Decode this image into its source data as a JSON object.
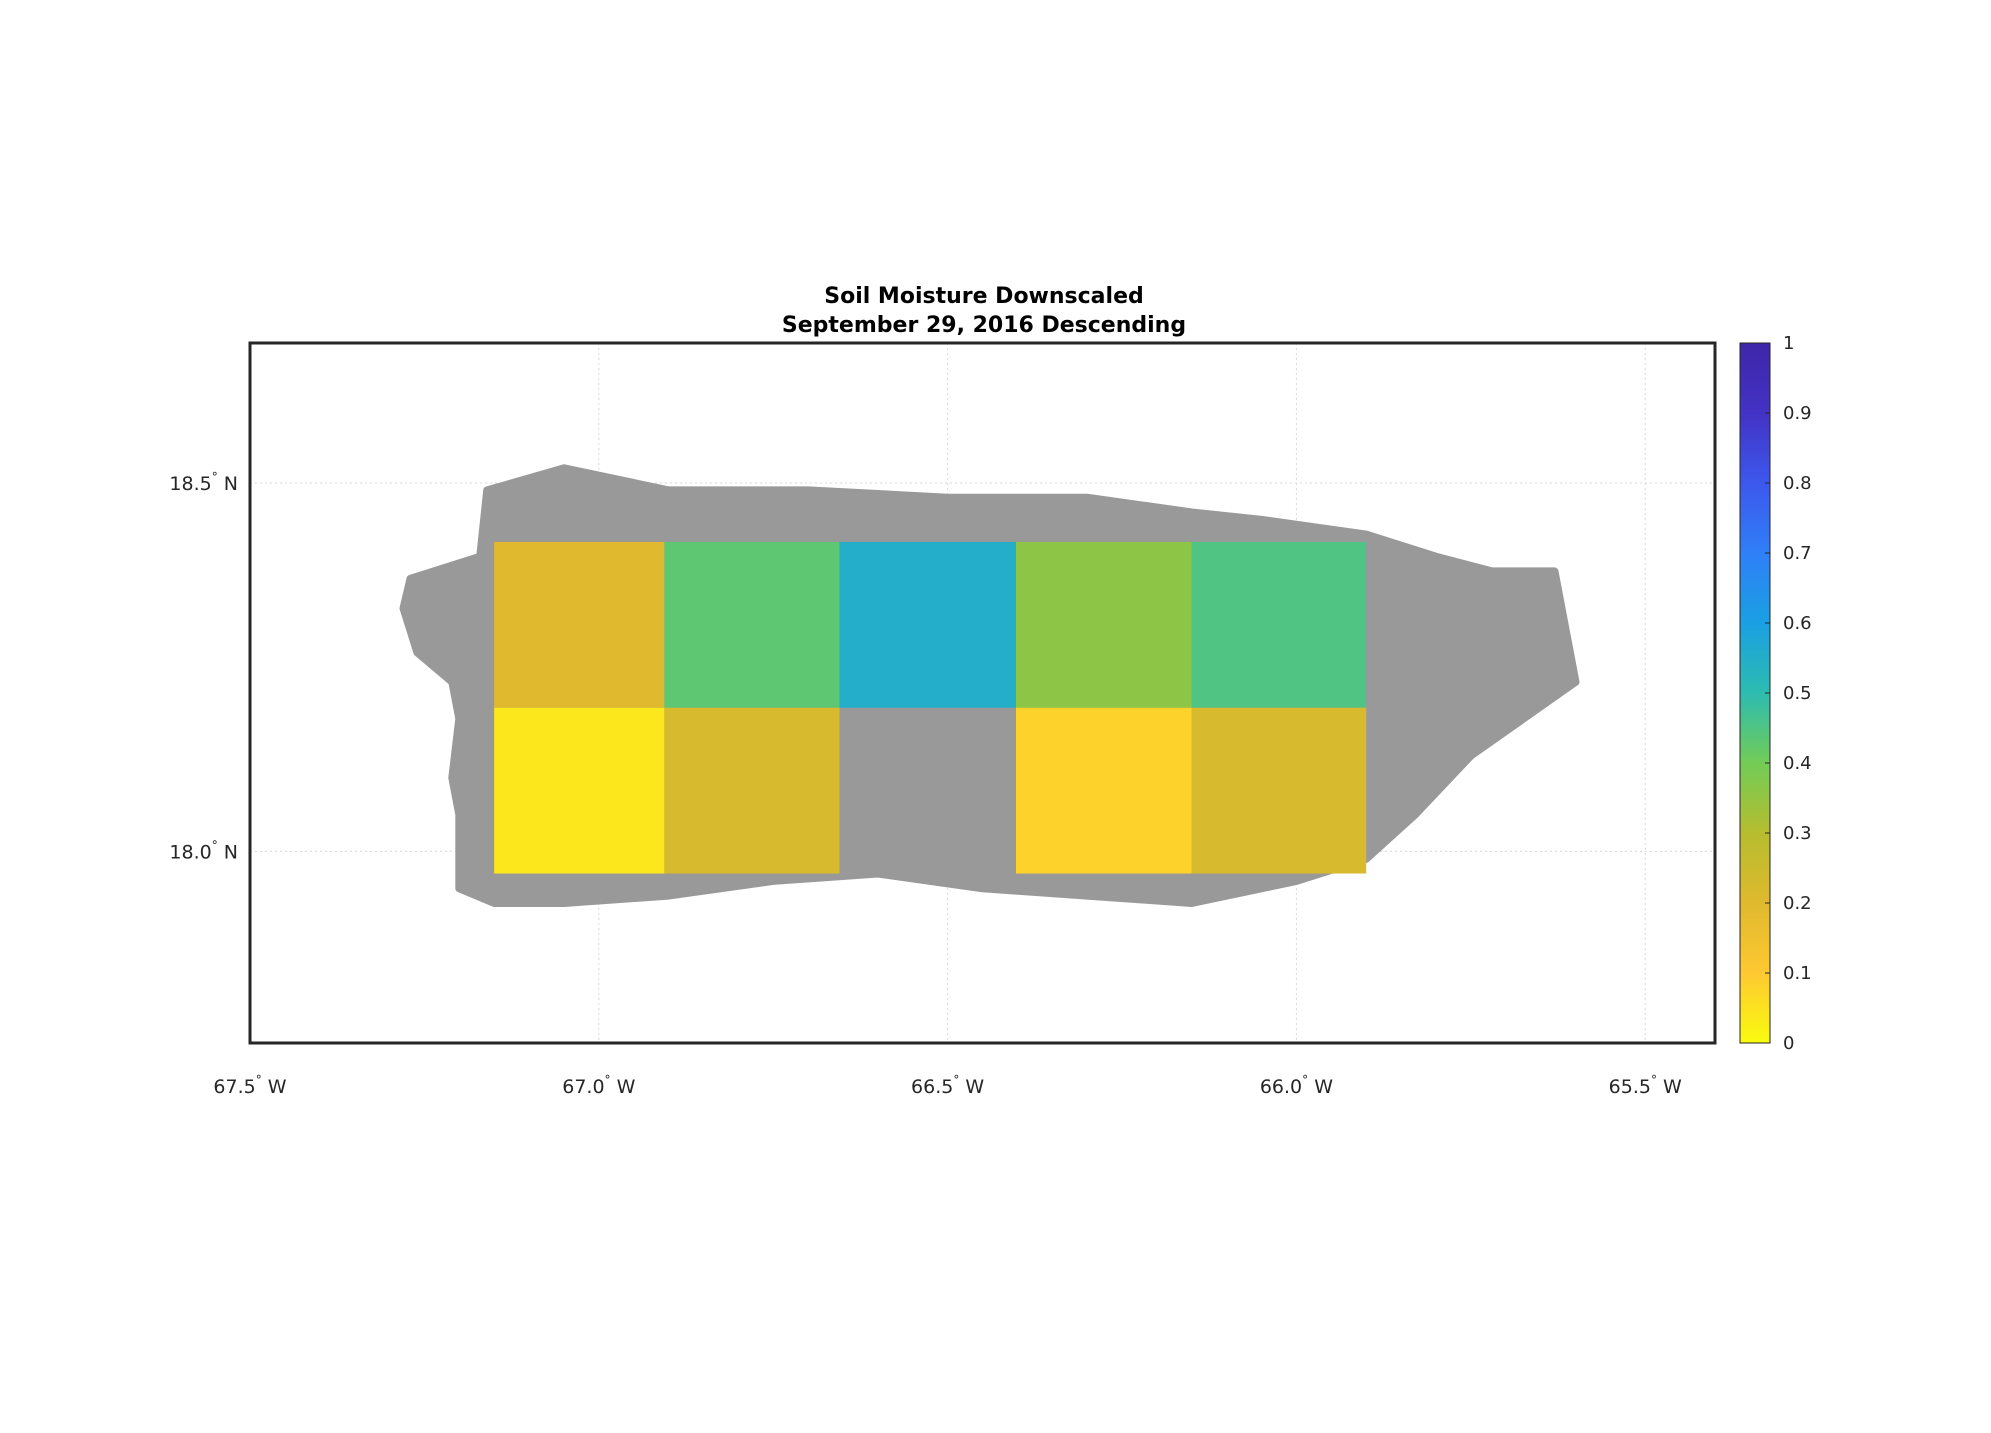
{
  "figure": {
    "title_line1": "Soil Moisture Downscaled",
    "title_line2": "September 29, 2016 Descending"
  },
  "map": {
    "lon_range": [
      -67.5,
      -65.4
    ],
    "lat_range": [
      17.74,
      18.69
    ],
    "xticks": [
      {
        "lon": -67.5,
        "num": "67.5",
        "hem": " W"
      },
      {
        "lon": -67.0,
        "num": "67.0",
        "hem": " W"
      },
      {
        "lon": -66.5,
        "num": "66.5",
        "hem": " W"
      },
      {
        "lon": -66.0,
        "num": "66.0",
        "hem": " W"
      },
      {
        "lon": -65.5,
        "num": "65.5",
        "hem": " W"
      }
    ],
    "yticks": [
      {
        "lat": 18.5,
        "num": "18.5",
        "hem": " N"
      },
      {
        "lat": 18.0,
        "num": "18.0",
        "hem": " N"
      }
    ],
    "grid": true,
    "no_data_color": "#999999",
    "land_outline": [
      [
        -67.27,
        18.37
      ],
      [
        -67.17,
        18.4
      ],
      [
        -67.16,
        18.49
      ],
      [
        -67.05,
        18.52
      ],
      [
        -66.9,
        18.49
      ],
      [
        -66.7,
        18.49
      ],
      [
        -66.5,
        18.48
      ],
      [
        -66.3,
        18.48
      ],
      [
        -66.15,
        18.46
      ],
      [
        -66.05,
        18.45
      ],
      [
        -65.9,
        18.43
      ],
      [
        -65.8,
        18.4
      ],
      [
        -65.72,
        18.38
      ],
      [
        -65.63,
        18.38
      ],
      [
        -65.6,
        18.23
      ],
      [
        -65.66,
        18.19
      ],
      [
        -65.75,
        18.13
      ],
      [
        -65.83,
        18.05
      ],
      [
        -65.9,
        17.99
      ],
      [
        -66.0,
        17.96
      ],
      [
        -66.15,
        17.93
      ],
      [
        -66.3,
        17.94
      ],
      [
        -66.45,
        17.95
      ],
      [
        -66.6,
        17.97
      ],
      [
        -66.75,
        17.96
      ],
      [
        -66.9,
        17.94
      ],
      [
        -67.05,
        17.93
      ],
      [
        -67.15,
        17.93
      ],
      [
        -67.2,
        17.95
      ],
      [
        -67.2,
        18.05
      ],
      [
        -67.21,
        18.1
      ],
      [
        -67.2,
        18.18
      ],
      [
        -67.21,
        18.23
      ],
      [
        -67.26,
        18.27
      ],
      [
        -67.28,
        18.33
      ]
    ],
    "soil_moisture_tiles": [
      {
        "lon0": -67.15,
        "lon1": -66.906,
        "lat0": 18.195,
        "lat1": 18.42,
        "value": 0.2
      },
      {
        "lon0": -66.906,
        "lon1": -66.655,
        "lat0": 18.195,
        "lat1": 18.42,
        "value": 0.43
      },
      {
        "lon0": -66.655,
        "lon1": -66.402,
        "lat0": 18.195,
        "lat1": 18.42,
        "value": 0.55
      },
      {
        "lon0": -66.402,
        "lon1": -66.15,
        "lat0": 18.195,
        "lat1": 18.42,
        "value": 0.36
      },
      {
        "lon0": -66.15,
        "lon1": -65.9,
        "lat0": 18.195,
        "lat1": 18.42,
        "value": 0.45
      },
      {
        "lon0": -67.15,
        "lon1": -66.906,
        "lat0": 17.97,
        "lat1": 18.195,
        "value": 0.04
      },
      {
        "lon0": -66.906,
        "lon1": -66.655,
        "lat0": 17.97,
        "lat1": 18.195,
        "value": 0.22
      },
      {
        "lon0": -66.402,
        "lon1": -66.15,
        "lat0": 17.97,
        "lat1": 18.195,
        "value": 0.08
      },
      {
        "lon0": -66.15,
        "lon1": -65.9,
        "lat0": 17.97,
        "lat1": 18.195,
        "value": 0.22
      }
    ]
  },
  "colorbar": {
    "min": 0,
    "max": 1,
    "ticks": [
      "0",
      "0.1",
      "0.2",
      "0.3",
      "0.4",
      "0.5",
      "0.6",
      "0.7",
      "0.8",
      "0.9",
      "1"
    ],
    "colormap": [
      "#f9fb0e",
      "#fec932",
      "#e0b92e",
      "#b6bd2f",
      "#72cc56",
      "#2dbcb0",
      "#1aa0e3",
      "#2f7ff7",
      "#3d58ed",
      "#4332c5",
      "#3e26a8"
    ]
  }
}
